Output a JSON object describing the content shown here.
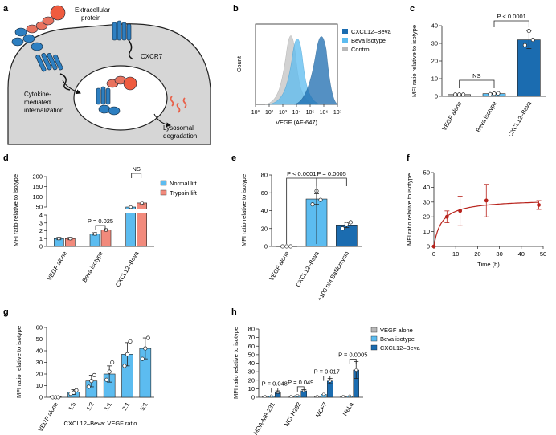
{
  "colors": {
    "light_blue": "#5cbcf0",
    "dark_blue": "#1b6cb0",
    "gray": "#b8b8b8",
    "salmon": "#f28a7c",
    "red": "#b8231c",
    "cell_gray": "#d6d6d6"
  },
  "panel_a": {
    "letter": "a",
    "extracellular": [
      "Extracellular",
      "protein"
    ],
    "cxcr7": "CXCR7",
    "internalization": [
      "Cytokine-",
      "mediated",
      "internalization"
    ],
    "lysosomal": [
      "Lysosomal",
      "degradation"
    ]
  },
  "panel_b": {
    "letter": "b",
    "ylabel": "Count",
    "xlabel": "VEGF (AF-647)",
    "xticks": [
      "10°",
      "10²",
      "10³",
      "10⁴",
      "10⁵",
      "10⁶",
      "10⁷"
    ],
    "legend": [
      "CXCL12–Beva",
      "Beva isotype",
      "Control"
    ]
  },
  "chart_data": [
    {
      "panel": "c",
      "type": "bar",
      "ylabel": "MFI ratio relative to isotype",
      "categories": [
        "VEGF alone",
        "Beva isotype",
        "CXCL12–Beva"
      ],
      "values": [
        1,
        1.5,
        32
      ],
      "points": [
        [
          1,
          1,
          1
        ],
        [
          1.2,
          1.5,
          1.7
        ],
        [
          29,
          37,
          32
        ]
      ],
      "errors": [
        0.2,
        0.3,
        5
      ],
      "ylim": [
        0,
        40
      ],
      "yticks": [
        "0",
        "10",
        "20",
        "30",
        "40"
      ],
      "annotations": [
        "NS",
        "P < 0.0001"
      ]
    },
    {
      "panel": "d",
      "type": "bar",
      "ylabel": "MFI ratio relative to isotype",
      "categories": [
        "VEGF alone",
        "Beva isotype",
        "CXCL12–Beva"
      ],
      "series": [
        {
          "name": "Normal lift",
          "values": [
            1,
            1.6,
            50
          ]
        },
        {
          "name": "Trypsin lift",
          "values": [
            1,
            2.1,
            70
          ]
        }
      ],
      "yticks_low": [
        "0",
        "1",
        "2",
        "3",
        "4"
      ],
      "yticks_high": [
        "50",
        "100",
        "150",
        "200"
      ],
      "annotations": [
        "P = 0.025",
        "NS"
      ]
    },
    {
      "panel": "e",
      "type": "bar",
      "ylabel": "MFI ratio relative to isotype",
      "categories": [
        "VEGF alone",
        "CXCL12–Beva",
        "+100 nM Bafilomycin"
      ],
      "values": [
        0.5,
        53,
        24
      ],
      "points": [
        [
          0,
          0,
          0
        ],
        [
          47,
          62,
          52
        ],
        [
          20,
          25,
          27
        ]
      ],
      "errors": [
        0,
        6,
        3
      ],
      "ylim": [
        0,
        80
      ],
      "yticks": [
        "0",
        "20",
        "40",
        "60",
        "80"
      ],
      "annotations": [
        "P < 0.0001",
        "P = 0.0005"
      ]
    },
    {
      "panel": "f",
      "type": "line",
      "ylabel": "MFI ratio relative to isotype",
      "xlabel": "Time (h)",
      "x": [
        0,
        6,
        12,
        24,
        48
      ],
      "y": [
        0,
        20,
        24,
        31,
        28
      ],
      "errors": [
        0,
        4,
        10,
        11,
        3
      ],
      "xlim": [
        0,
        50
      ],
      "ylim": [
        0,
        50
      ],
      "xticks": [
        "0",
        "10",
        "20",
        "30",
        "40",
        "50"
      ],
      "yticks": [
        "0",
        "10",
        "20",
        "30",
        "40",
        "50"
      ]
    },
    {
      "panel": "g",
      "type": "bar",
      "ylabel": "MFI ratio relative to isotype",
      "xlabel": "CXCL12–Beva: VEGF ratio",
      "categories": [
        "VEGF alone",
        "1:5",
        "1:2",
        "1:1",
        "2:1",
        "5:1"
      ],
      "values": [
        0.5,
        4.5,
        14,
        20,
        37,
        42
      ],
      "points": [
        [
          0,
          0,
          0
        ],
        [
          3,
          4,
          6
        ],
        [
          9,
          14,
          19
        ],
        [
          15,
          22,
          30
        ],
        [
          27,
          37,
          48
        ],
        [
          33,
          42,
          51
        ]
      ],
      "errors": [
        0,
        2,
        5,
        7,
        10,
        9
      ],
      "ylim": [
        0,
        60
      ],
      "yticks": [
        "0",
        "10",
        "20",
        "30",
        "40",
        "50",
        "60"
      ]
    },
    {
      "panel": "h",
      "type": "bar",
      "ylabel": "MFI ratio relative to isotype",
      "categories": [
        "MDA-MB-231",
        "NCI-H292",
        "MCF7",
        "HeLa"
      ],
      "series": [
        {
          "name": "VEGF alone",
          "values": [
            1,
            1,
            1,
            1
          ]
        },
        {
          "name": "Beva isotype",
          "values": [
            1.5,
            2,
            3.5,
            1.5
          ]
        },
        {
          "name": "CXCL12–Beva",
          "values": [
            6,
            7.5,
            19,
            32
          ]
        }
      ],
      "ylim": [
        0,
        80
      ],
      "yticks": [
        "0",
        "10",
        "20",
        "30",
        "40",
        "50",
        "60",
        "70",
        "80"
      ],
      "annotations": [
        "P = 0.048",
        "P = 0.049",
        "P = 0.017",
        "P = 0.0005"
      ]
    }
  ],
  "letters": {
    "c": "c",
    "d": "d",
    "e": "e",
    "f": "f",
    "g": "g",
    "h": "h"
  }
}
